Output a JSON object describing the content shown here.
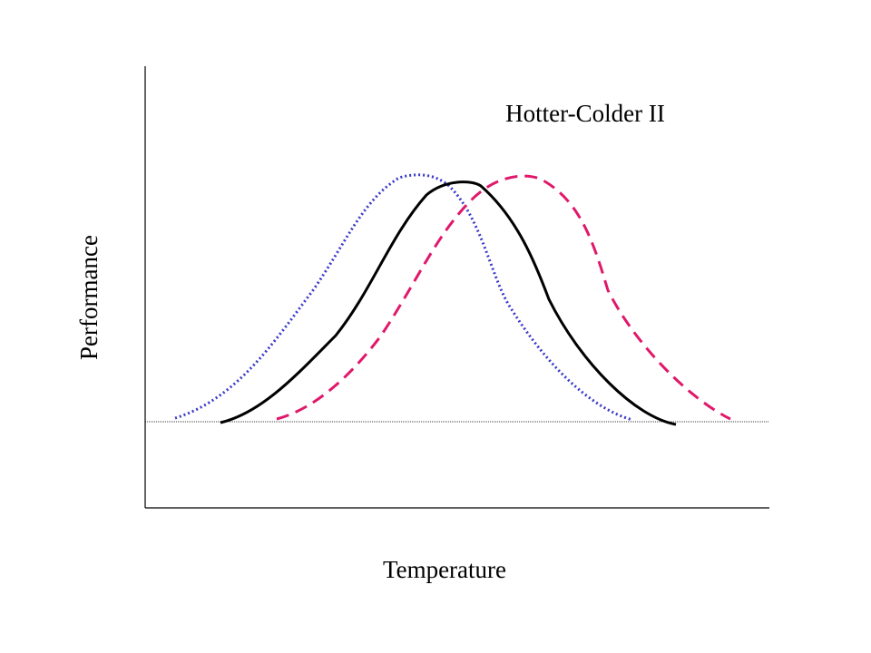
{
  "title": "Hotter-Colder II",
  "y_label": "Performance",
  "x_label": "Temperature"
}
